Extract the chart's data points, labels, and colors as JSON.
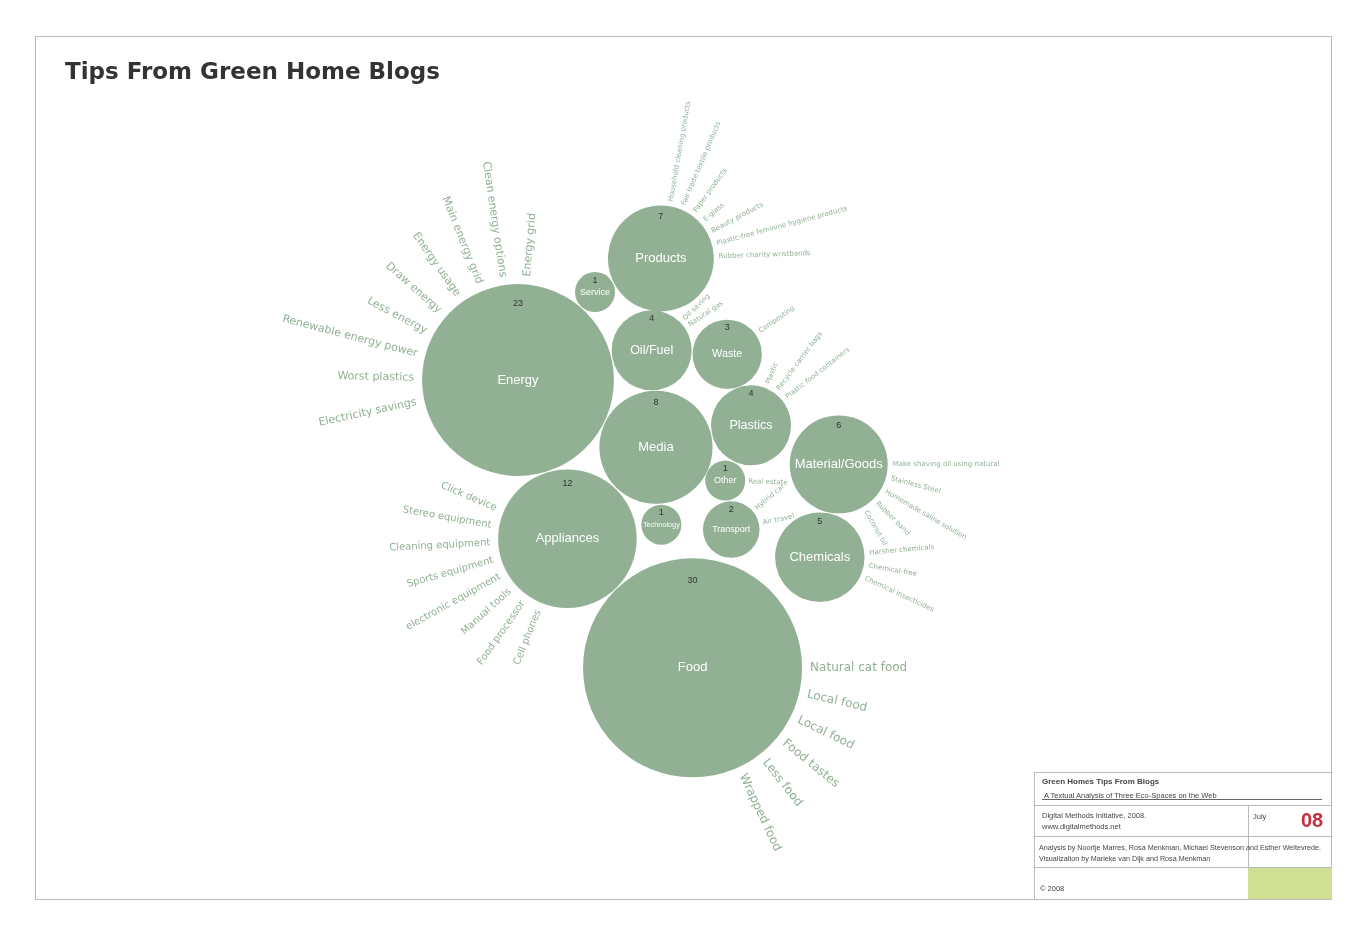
{
  "chart_data": {
    "type": "other",
    "title": "Tips From Green Home Blogs",
    "color": "#91b094",
    "categories": [
      "Energy",
      "Products",
      "Service",
      "Oil/Fuel",
      "Waste",
      "Media",
      "Plastics",
      "Other",
      "Material/Goods",
      "Appliances",
      "Technology",
      "Transport",
      "Chemicals",
      "Food"
    ],
    "values": [
      23,
      7,
      1,
      4,
      3,
      8,
      4,
      1,
      6,
      12,
      1,
      2,
      5,
      30
    ],
    "data_labels": true,
    "annotations": [
      "Green Homes Tips From Blogs",
      "A Textual Analysis of  Three Eco-Spaces on the Web",
      "Digital Methods Initiative, 2008.",
      "www.digitalmethods.net",
      "July",
      "08",
      "Analysis by Noortje Marres, Rosa Menkman, Michael Stevenson and Esther Weltevrede.",
      "Visualization by Marieke van Dijk and Rosa Menkman",
      "© 2008",
      {
        "text": "Energy grid",
        "x": "Energy"
      },
      {
        "text": "Clean energy options",
        "x": "Energy"
      },
      {
        "text": "Main energy grid",
        "x": "Energy"
      },
      {
        "text": "Energy usage",
        "x": "Energy"
      },
      {
        "text": "Draw energy",
        "x": "Energy"
      },
      {
        "text": "Less energy",
        "x": "Energy"
      },
      {
        "text": "Renewable energy power",
        "x": "Energy"
      },
      {
        "text": "Worst plastics",
        "x": "Energy"
      },
      {
        "text": "Electricity savings",
        "x": "Energy"
      },
      {
        "text": "Household cleaning products",
        "x": "Products"
      },
      {
        "text": "Fair trade textile products",
        "x": "Products"
      },
      {
        "text": "Paper products",
        "x": "Products"
      },
      {
        "text": "E-glass",
        "x": "Products"
      },
      {
        "text": "Beauty products",
        "x": "Products"
      },
      {
        "text": "Plastic-free feminine hygiene products",
        "x": "Products"
      },
      {
        "text": "Rubber charity wristbands",
        "x": "Products"
      },
      {
        "text": "Oil saving",
        "x": "Oil/Fuel"
      },
      {
        "text": "Natural gas",
        "x": "Oil/Fuel"
      },
      {
        "text": "Composting",
        "x": "Waste"
      },
      {
        "text": "Plastic",
        "x": "Plastics"
      },
      {
        "text": "Recycle carrier bags",
        "x": "Plastics"
      },
      {
        "text": "Plastic food containers",
        "x": "Plastics"
      },
      {
        "text": "Real estate",
        "x": "Other"
      },
      {
        "text": "Make shaving oil using natural",
        "x": "Material/Goods"
      },
      {
        "text": "Stainless Steel",
        "x": "Material/Goods"
      },
      {
        "text": "Homemade saline solution",
        "x": "Material/Goods"
      },
      {
        "text": "Rubber band",
        "x": "Material/Goods"
      },
      {
        "text": "Coconut oil",
        "x": "Material/Goods"
      },
      {
        "text": "Click device",
        "x": "Appliances"
      },
      {
        "text": "Stereo equipment",
        "x": "Appliances"
      },
      {
        "text": "Cleaning equipment",
        "x": "Appliances"
      },
      {
        "text": "Sports equipment",
        "x": "Appliances"
      },
      {
        "text": "electronic equipment",
        "x": "Appliances"
      },
      {
        "text": "Manual tools",
        "x": "Appliances"
      },
      {
        "text": "Food processor",
        "x": "Appliances"
      },
      {
        "text": "Cell phones",
        "x": "Appliances"
      },
      {
        "text": "Hybrid car",
        "x": "Transport"
      },
      {
        "text": "Air travel",
        "x": "Transport"
      },
      {
        "text": "Harsher chemicals",
        "x": "Chemicals"
      },
      {
        "text": "Chemical-free",
        "x": "Chemicals"
      },
      {
        "text": "Chemical insecticides",
        "x": "Chemicals"
      },
      {
        "text": "Natural cat food",
        "x": "Food"
      },
      {
        "text": "Local food",
        "x": "Food"
      },
      {
        "text": "Local food",
        "x": "Food"
      },
      {
        "text": "Food tastes",
        "x": "Food"
      },
      {
        "text": "Less food",
        "x": "Food"
      },
      {
        "text": "Wrapped food",
        "x": "Food"
      }
    ]
  }
}
